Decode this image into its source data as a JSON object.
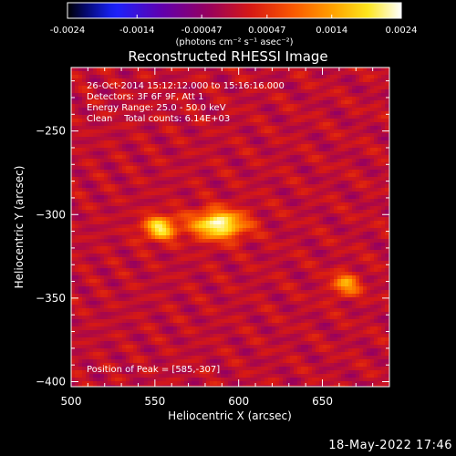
{
  "chart_data": {
    "type": "heatmap",
    "title": "Reconstructed RHESSI Image",
    "xlabel": "Heliocentric X (arcsec)",
    "ylabel": "Heliocentric Y (arcsec)",
    "xlim": [
      500,
      690
    ],
    "ylim": [
      -403,
      -212
    ],
    "xticks": [
      500,
      550,
      600,
      650
    ],
    "yticks": [
      -250,
      -300,
      -350,
      -400
    ],
    "colormap": "black-blue-purple-red-orange-yellow-white (IDL color table 3 style)",
    "colorbar": {
      "range": [
        -0.0024,
        0.0024
      ],
      "ticks": [
        "-0.0024",
        "-0.0014",
        "-0.00047",
        "0.00047",
        "0.0014",
        "0.0024"
      ],
      "units_label": "(photons cm⁻² s⁻¹ asec⁻²)",
      "position": "top"
    },
    "annotations": [
      "26-Oct-2014 15:12:12.000 to 15:16:16.000",
      "Detectors: 3F 6F 9F, Att 1",
      "Energy Range: 25.0 - 50.0 keV",
      "Clean    Total counts: 6.14E+03"
    ],
    "peak_label": "Position of Peak = [585,-307]",
    "sources": [
      {
        "x": 588,
        "y": -306,
        "peak": 0.0024,
        "sx": 11,
        "sy": 6
      },
      {
        "x": 553,
        "y": -308,
        "peak": 0.002,
        "sx": 7,
        "sy": 5
      },
      {
        "x": 664,
        "y": -342,
        "peak": 0.00135,
        "sx": 6,
        "sy": 5
      }
    ],
    "background_level": 0.0009,
    "grid": false
  },
  "footer": {
    "timestamp": "18-May-2022 17:46"
  }
}
